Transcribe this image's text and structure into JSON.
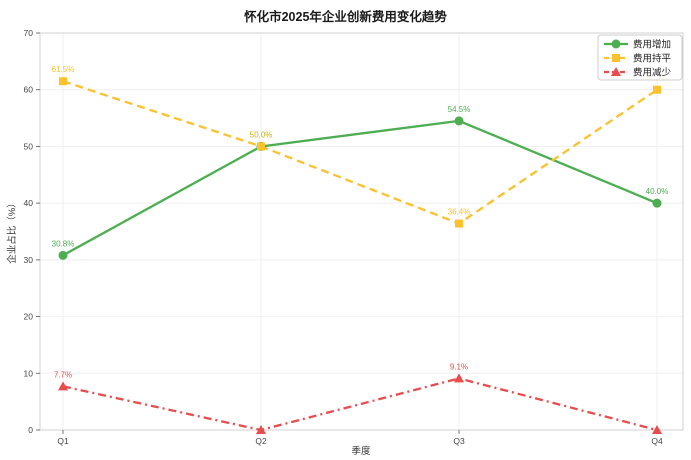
{
  "chart_data": {
    "type": "line",
    "title": "怀化市2025年企业创新费用变化趋势",
    "xlabel": "季度",
    "ylabel": "企业占比（%）",
    "categories": [
      "Q1",
      "Q2",
      "Q3",
      "Q4"
    ],
    "ylim": [
      0,
      70
    ],
    "yticks": [
      0,
      10,
      20,
      30,
      40,
      50,
      60,
      70
    ],
    "grid": true,
    "legend_position": "top-right",
    "series": [
      {
        "name": "费用增加",
        "color": "#4cae51",
        "marker": "circle",
        "line_style": "solid",
        "values": [
          30.8,
          50.0,
          54.5,
          40.0
        ],
        "labels": [
          "30.8%",
          "50.0%",
          "54.5%",
          "40.0%"
        ]
      },
      {
        "name": "费用持平",
        "color": "#fcc12c",
        "marker": "square",
        "line_style": "dashed",
        "values": [
          61.5,
          50.0,
          36.4,
          60.0
        ],
        "labels": [
          "61.5%",
          "50.0%",
          "36.4%",
          "60.0%"
        ]
      },
      {
        "name": "费用减少",
        "color": "#e84c4c",
        "marker": "triangle",
        "line_style": "dashdot",
        "values": [
          7.7,
          0.0,
          9.1,
          0.0
        ],
        "labels": [
          "7.7%",
          null,
          "9.1%",
          null
        ]
      }
    ]
  }
}
